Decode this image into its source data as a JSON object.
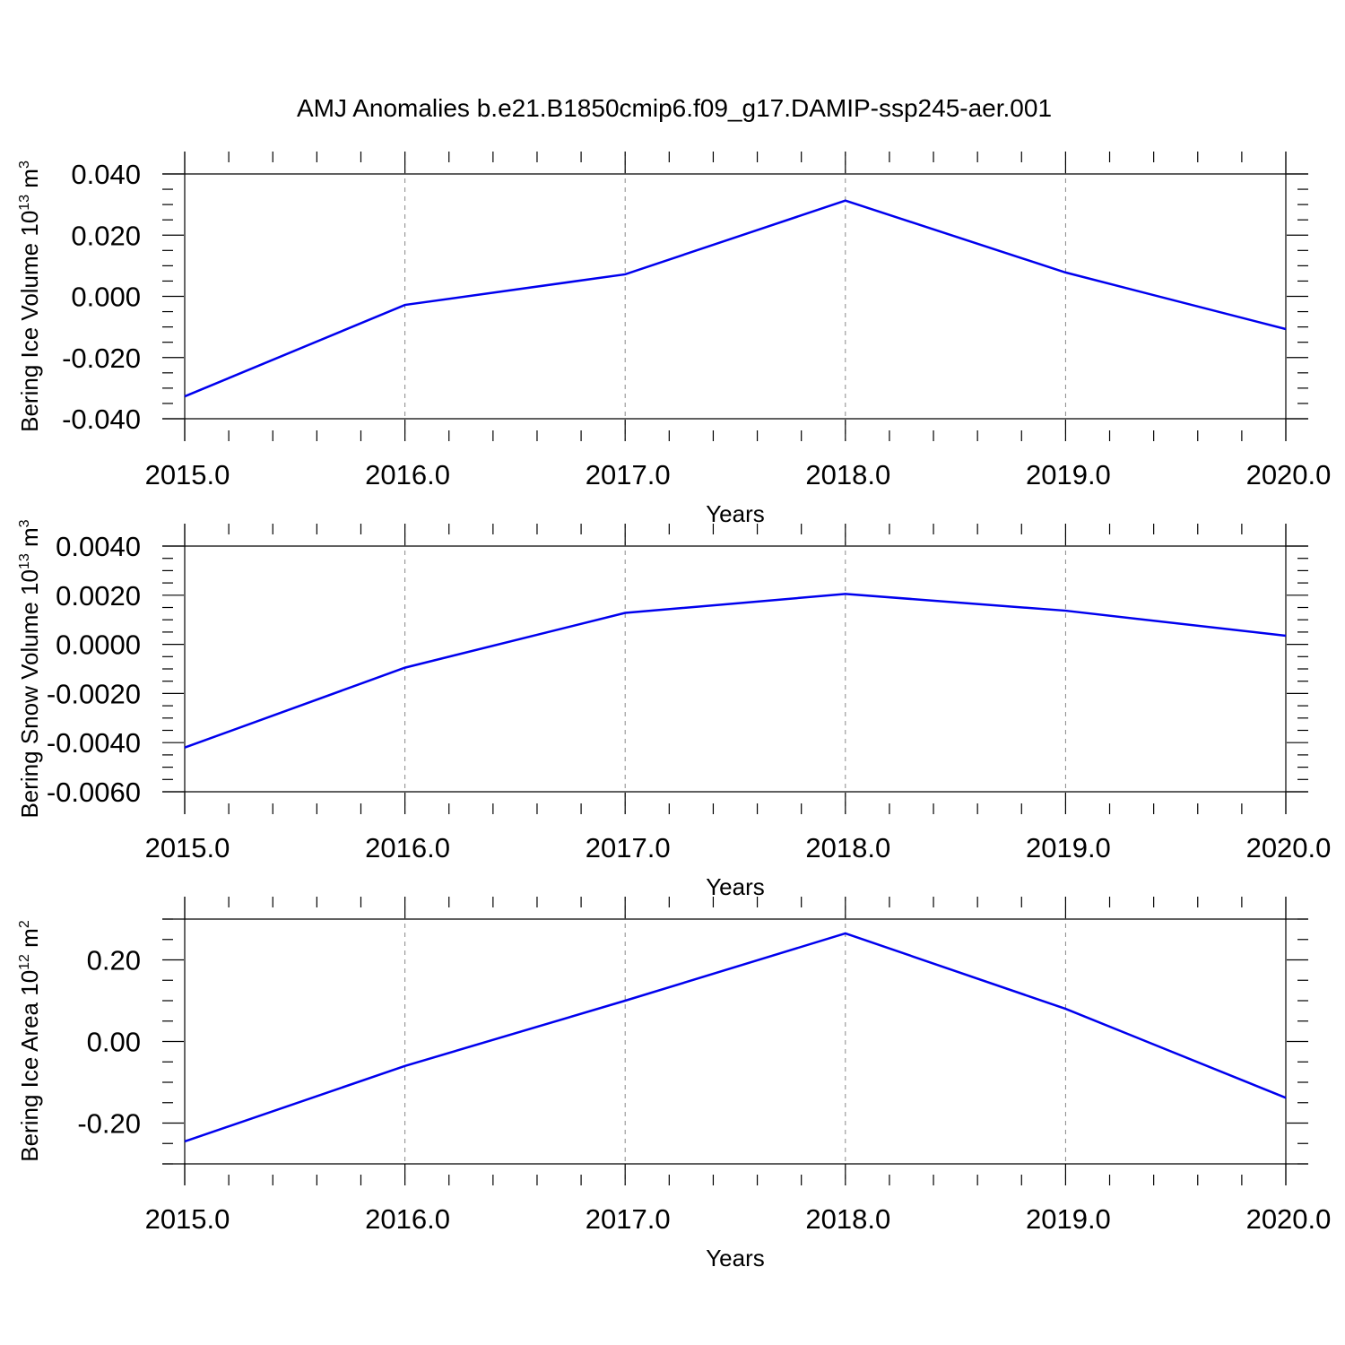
{
  "title": "AMJ Anomalies b.e21.B1850cmip6.f09_g17.DAMIP-ssp245-aer.001",
  "colors": {
    "series": "#0000ee",
    "grid": "#888888",
    "axis": "#000000"
  },
  "chart_data": [
    {
      "type": "line",
      "ylabel": {
        "main": "Bering Ice Volume 10",
        "sup1": "13",
        "mid": " m",
        "sup2": "3"
      },
      "xlabel": "Years",
      "x": [
        2015,
        2016,
        2017,
        2018,
        2019,
        2020
      ],
      "xtick_labels": [
        "2015.0",
        "2016.0",
        "2017.0",
        "2018.0",
        "2019.0",
        "2020.0"
      ],
      "xlim": [
        2015,
        2020
      ],
      "ylim": [
        -0.04,
        0.04
      ],
      "ytick_values": [
        -0.04,
        -0.02,
        0.0,
        0.02,
        0.04
      ],
      "ytick_labels": [
        "-0.040",
        "-0.020",
        "0.000",
        "0.020",
        "0.040"
      ],
      "series": [
        {
          "values": [
            -0.0327,
            -0.0028,
            0.0072,
            0.0313,
            0.0078,
            -0.0107
          ]
        }
      ],
      "grid": "vertical-dashed"
    },
    {
      "type": "line",
      "ylabel": {
        "main": "Bering Snow Volume 10",
        "sup1": "13",
        "mid": " m",
        "sup2": "3"
      },
      "xlabel": "Years",
      "x": [
        2015,
        2016,
        2017,
        2018,
        2019,
        2020
      ],
      "xtick_labels": [
        "2015.0",
        "2016.0",
        "2017.0",
        "2018.0",
        "2019.0",
        "2020.0"
      ],
      "xlim": [
        2015,
        2020
      ],
      "ylim": [
        -0.006,
        0.004
      ],
      "ytick_values": [
        -0.006,
        -0.004,
        -0.002,
        0.0,
        0.002,
        0.004
      ],
      "ytick_labels": [
        "-0.0060",
        "-0.0040",
        "-0.0020",
        "0.0000",
        "0.0020",
        "0.0040"
      ],
      "series": [
        {
          "values": [
            -0.0042,
            -0.00095,
            0.00128,
            0.00205,
            0.00137,
            0.00035
          ]
        }
      ],
      "grid": "vertical-dashed"
    },
    {
      "type": "line",
      "ylabel": {
        "main": "Bering Ice Area 10",
        "sup1": "12",
        "mid": " m",
        "sup2": "2"
      },
      "xlabel": "Years",
      "x": [
        2015,
        2016,
        2017,
        2018,
        2019,
        2020
      ],
      "xtick_labels": [
        "2015.0",
        "2016.0",
        "2017.0",
        "2018.0",
        "2019.0",
        "2020.0"
      ],
      "xlim": [
        2015,
        2020
      ],
      "ylim": [
        -0.3,
        0.3
      ],
      "ytick_values": [
        -0.2,
        0.0,
        0.2
      ],
      "ytick_labels": [
        "-0.20",
        "0.00",
        "0.20"
      ],
      "series": [
        {
          "values": [
            -0.245,
            -0.06,
            0.1,
            0.265,
            0.08,
            -0.138
          ]
        }
      ],
      "grid": "vertical-dashed"
    }
  ]
}
